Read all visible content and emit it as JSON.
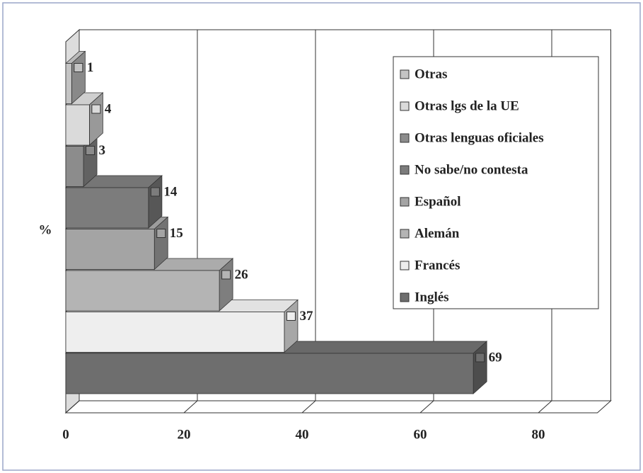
{
  "chart_data": {
    "type": "bar3d_horizontal",
    "y_label": "%",
    "categories": [
      "Inglés",
      "Francés",
      "Alemán",
      "Español",
      "No sabe/no contesta",
      "Otras lenguas oficiales",
      "Otras lgs de la UE",
      "Otras"
    ],
    "values": [
      69,
      37,
      26,
      15,
      14,
      3,
      4,
      1
    ],
    "colors": [
      "#6e6e6e",
      "#eeeeee",
      "#b4b4b4",
      "#a4a4a4",
      "#7c7c7c",
      "#8c8c8c",
      "#dadada",
      "#c4c4c4"
    ],
    "xlim": [
      0,
      90
    ],
    "xticks": [
      0,
      20,
      40,
      60,
      80
    ],
    "grid": true,
    "legend": "upper right"
  }
}
